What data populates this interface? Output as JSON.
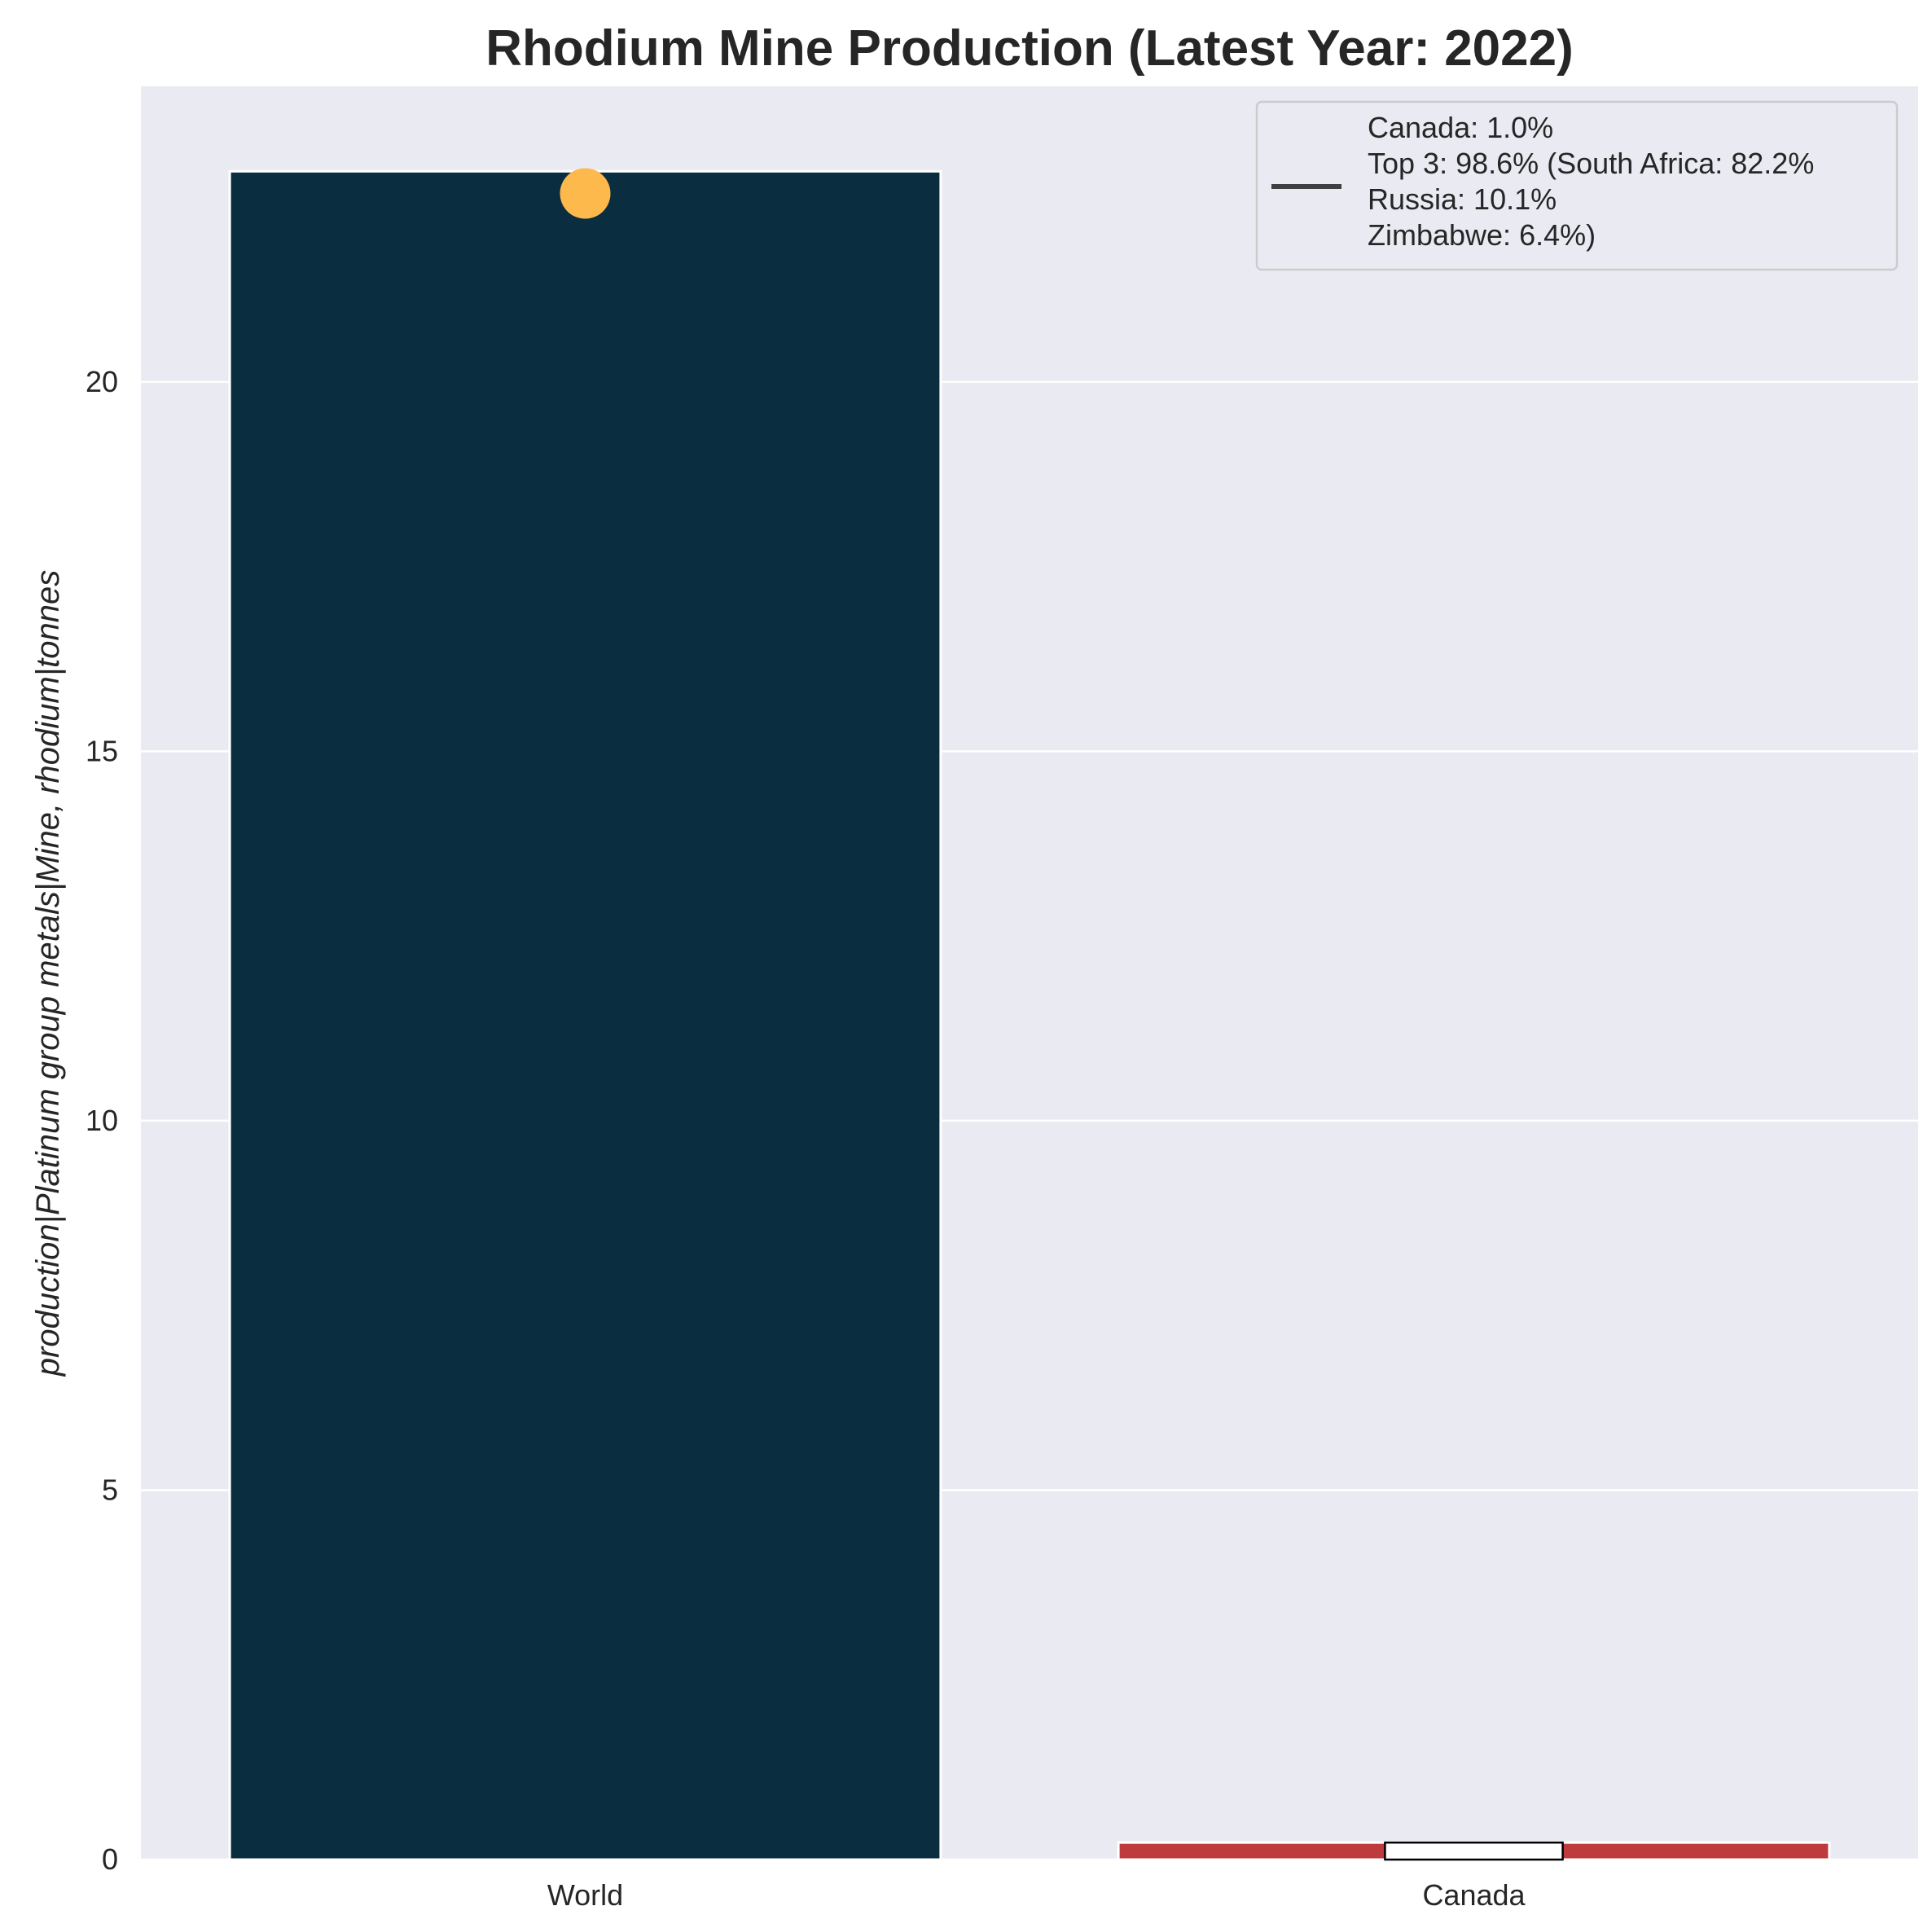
{
  "chart_data": {
    "type": "bar",
    "title": "Rhodium Mine Production (Latest Year: 2022)",
    "xlabel": "",
    "ylabel": "production|Platinum group metals|Mine, rhodium|tonnes",
    "categories": [
      "World",
      "Canada"
    ],
    "values": [
      22.85,
      0.23
    ],
    "ylim": [
      0,
      24
    ],
    "yticks": [
      0,
      5,
      10,
      15,
      20
    ],
    "bar_colors": [
      "#0b2d40",
      "#bf3a3c"
    ],
    "marker": {
      "category": "World",
      "value": 22.55,
      "color": "#fdb94c"
    },
    "inner_box": {
      "category": "Canada",
      "value": 0.23
    },
    "legend": {
      "placement": "top-right",
      "lines": [
        "Canada: 1.0%",
        "Top 3: 98.6% (South Africa: 82.2%",
        "Russia: 10.1%",
        "Zimbabwe: 6.4%)"
      ]
    },
    "grid": true,
    "background": "#eaeaf2"
  }
}
